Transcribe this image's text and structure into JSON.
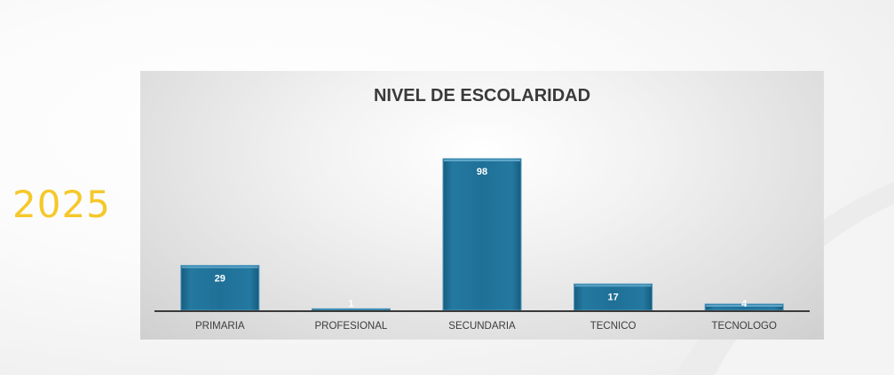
{
  "year": "2025",
  "colors": {
    "year": "#f5c82b",
    "bar": "#1f6f95",
    "bar_edge": "#4f98bd",
    "axis": "#3a3a3a"
  },
  "chart_data": {
    "type": "bar",
    "title": "NIVEL DE ESCOLARIDAD",
    "xlabel": "",
    "ylabel": "",
    "categories": [
      "PRIMARIA",
      "PROFESIONAL",
      "SECUNDARIA",
      "TECNICO",
      "TECNOLOGO"
    ],
    "values": [
      29,
      1,
      98,
      17,
      4
    ],
    "ylim": [
      0,
      98
    ],
    "grid": false,
    "legend": "none",
    "data_labels": true
  }
}
